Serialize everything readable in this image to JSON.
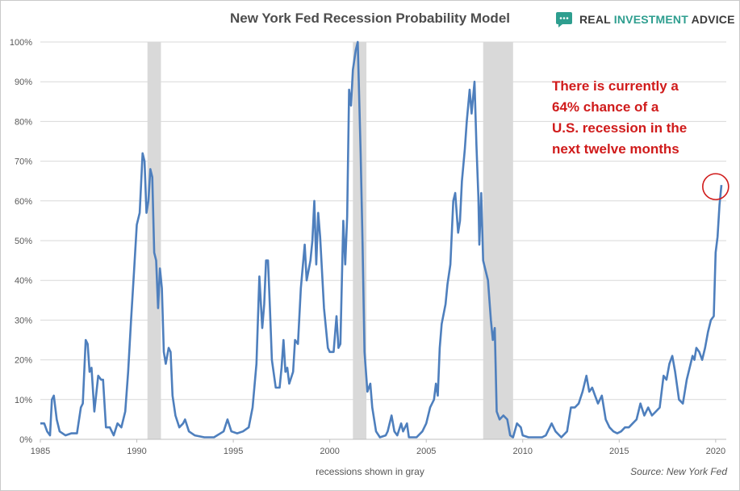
{
  "header": {
    "title": "New York Fed Recession Probability Model",
    "logo_text_a": "REAL ",
    "logo_text_b": "INVESTMENT ",
    "logo_text_c": "ADVICE",
    "logo_icon": "speech-bubble-icon",
    "logo_color": "#2e9e8f"
  },
  "annotation": [
    "There is currently a",
    "64% chance of a",
    "U.S. recession in the",
    "next twelve months"
  ],
  "caption": "recessions shown in gray",
  "source": "Source: New York Fed",
  "colors": {
    "line": "#4e7fbd",
    "recession": "#d9d9d9",
    "grid": "#d9d9d9",
    "highlight": "#d01b1b"
  },
  "chart_data": {
    "type": "line",
    "title": "New York Fed Recession Probability Model",
    "xlabel": "recessions shown in gray",
    "ylabel": "",
    "xlim": [
      1985,
      2020.55
    ],
    "ylim": [
      0,
      100
    ],
    "y_ticks": [
      0,
      10,
      20,
      30,
      40,
      50,
      60,
      70,
      80,
      90,
      100
    ],
    "y_tick_labels": [
      "0%",
      "10%",
      "20%",
      "30%",
      "40%",
      "50%",
      "60%",
      "70%",
      "80%",
      "90%",
      "100%"
    ],
    "x_ticks": [
      1985,
      1990,
      1995,
      2000,
      2005,
      2010,
      2015,
      2020
    ],
    "x_tick_labels": [
      "1985",
      "1990",
      "1995",
      "2000",
      "2005",
      "2010",
      "2015",
      "2020"
    ],
    "grid": "horizontal",
    "recessions": [
      [
        1990.55,
        1991.25
      ],
      [
        2001.2,
        2001.9
      ],
      [
        2007.95,
        2009.5
      ]
    ],
    "highlight_point": [
      2020.25,
      64
    ],
    "series": [
      {
        "values": [
          [
            1985.0,
            4
          ],
          [
            1985.2,
            4
          ],
          [
            1985.35,
            2
          ],
          [
            1985.5,
            1
          ],
          [
            1985.6,
            10
          ],
          [
            1985.7,
            11
          ],
          [
            1985.85,
            5
          ],
          [
            1986.0,
            2
          ],
          [
            1986.3,
            1
          ],
          [
            1986.6,
            1.5
          ],
          [
            1986.9,
            1.5
          ],
          [
            1987.1,
            8
          ],
          [
            1987.2,
            9
          ],
          [
            1987.35,
            25
          ],
          [
            1987.45,
            24
          ],
          [
            1987.55,
            17
          ],
          [
            1987.65,
            18
          ],
          [
            1987.8,
            7
          ],
          [
            1988.0,
            16
          ],
          [
            1988.15,
            15
          ],
          [
            1988.25,
            15
          ],
          [
            1988.4,
            3
          ],
          [
            1988.6,
            3
          ],
          [
            1988.8,
            1
          ],
          [
            1989.0,
            4
          ],
          [
            1989.2,
            3
          ],
          [
            1989.4,
            7
          ],
          [
            1989.55,
            17
          ],
          [
            1989.7,
            30
          ],
          [
            1989.85,
            42
          ],
          [
            1990.0,
            54
          ],
          [
            1990.15,
            57
          ],
          [
            1990.3,
            72
          ],
          [
            1990.4,
            70
          ],
          [
            1990.5,
            57
          ],
          [
            1990.6,
            60
          ],
          [
            1990.7,
            68
          ],
          [
            1990.8,
            66
          ],
          [
            1990.9,
            47
          ],
          [
            1991.0,
            45
          ],
          [
            1991.1,
            33
          ],
          [
            1991.2,
            43
          ],
          [
            1991.3,
            38
          ],
          [
            1991.4,
            22
          ],
          [
            1991.5,
            19
          ],
          [
            1991.65,
            23
          ],
          [
            1991.75,
            22
          ],
          [
            1991.85,
            11
          ],
          [
            1992.0,
            6
          ],
          [
            1992.2,
            3
          ],
          [
            1992.4,
            4
          ],
          [
            1992.5,
            5
          ],
          [
            1992.7,
            2
          ],
          [
            1993.0,
            1
          ],
          [
            1993.5,
            0.5
          ],
          [
            1994.0,
            0.5
          ],
          [
            1994.5,
            2
          ],
          [
            1994.7,
            5
          ],
          [
            1994.9,
            2
          ],
          [
            1995.2,
            1.5
          ],
          [
            1995.5,
            2
          ],
          [
            1995.8,
            3
          ],
          [
            1996.0,
            8
          ],
          [
            1996.2,
            19
          ],
          [
            1996.35,
            41
          ],
          [
            1996.5,
            28
          ],
          [
            1996.6,
            34
          ],
          [
            1996.7,
            45
          ],
          [
            1996.8,
            45
          ],
          [
            1996.9,
            33
          ],
          [
            1997.0,
            20
          ],
          [
            1997.2,
            13
          ],
          [
            1997.4,
            13
          ],
          [
            1997.5,
            18
          ],
          [
            1997.6,
            25
          ],
          [
            1997.7,
            17
          ],
          [
            1997.8,
            18
          ],
          [
            1997.9,
            14
          ],
          [
            1998.1,
            17
          ],
          [
            1998.2,
            25
          ],
          [
            1998.35,
            24
          ],
          [
            1998.5,
            38
          ],
          [
            1998.7,
            49
          ],
          [
            1998.8,
            40
          ],
          [
            1999.0,
            45
          ],
          [
            1999.1,
            50
          ],
          [
            1999.2,
            60
          ],
          [
            1999.3,
            44
          ],
          [
            1999.4,
            57
          ],
          [
            1999.5,
            51
          ],
          [
            1999.7,
            33
          ],
          [
            1999.9,
            23
          ],
          [
            2000.0,
            22
          ],
          [
            2000.2,
            22
          ],
          [
            2000.35,
            31
          ],
          [
            2000.45,
            23
          ],
          [
            2000.55,
            24
          ],
          [
            2000.7,
            55
          ],
          [
            2000.8,
            44
          ],
          [
            2000.9,
            56
          ],
          [
            2001.0,
            88
          ],
          [
            2001.1,
            84
          ],
          [
            2001.2,
            93
          ],
          [
            2001.35,
            98
          ],
          [
            2001.45,
            100
          ],
          [
            2001.6,
            72
          ],
          [
            2001.7,
            49
          ],
          [
            2001.8,
            22
          ],
          [
            2001.95,
            12
          ],
          [
            2002.1,
            14
          ],
          [
            2002.2,
            8
          ],
          [
            2002.4,
            2
          ],
          [
            2002.6,
            0.5
          ],
          [
            2002.9,
            1
          ],
          [
            2003.0,
            2
          ],
          [
            2003.2,
            6
          ],
          [
            2003.35,
            2
          ],
          [
            2003.5,
            1
          ],
          [
            2003.7,
            4
          ],
          [
            2003.8,
            2
          ],
          [
            2004.0,
            4
          ],
          [
            2004.1,
            0.5
          ],
          [
            2004.5,
            0.5
          ],
          [
            2004.8,
            2
          ],
          [
            2005.0,
            4
          ],
          [
            2005.2,
            8
          ],
          [
            2005.4,
            10
          ],
          [
            2005.5,
            14
          ],
          [
            2005.6,
            11
          ],
          [
            2005.7,
            23
          ],
          [
            2005.8,
            29
          ],
          [
            2006.0,
            34
          ],
          [
            2006.1,
            39
          ],
          [
            2006.25,
            44
          ],
          [
            2006.4,
            60
          ],
          [
            2006.5,
            62
          ],
          [
            2006.65,
            52
          ],
          [
            2006.75,
            55
          ],
          [
            2006.85,
            65
          ],
          [
            2007.0,
            73
          ],
          [
            2007.1,
            80
          ],
          [
            2007.25,
            88
          ],
          [
            2007.35,
            82
          ],
          [
            2007.5,
            90
          ],
          [
            2007.6,
            74
          ],
          [
            2007.7,
            61
          ],
          [
            2007.75,
            49
          ],
          [
            2007.85,
            62
          ],
          [
            2007.95,
            45
          ],
          [
            2008.05,
            43
          ],
          [
            2008.2,
            40
          ],
          [
            2008.35,
            30
          ],
          [
            2008.45,
            25
          ],
          [
            2008.55,
            28
          ],
          [
            2008.65,
            7
          ],
          [
            2008.8,
            5
          ],
          [
            2009.0,
            6
          ],
          [
            2009.2,
            5
          ],
          [
            2009.35,
            1
          ],
          [
            2009.5,
            0.5
          ],
          [
            2009.7,
            4
          ],
          [
            2009.9,
            3
          ],
          [
            2010.0,
            1
          ],
          [
            2010.3,
            0.5
          ],
          [
            2010.6,
            0.5
          ],
          [
            2011.0,
            0.5
          ],
          [
            2011.2,
            1
          ],
          [
            2011.5,
            4
          ],
          [
            2011.7,
            2
          ],
          [
            2011.9,
            1
          ],
          [
            2012.0,
            0.5
          ],
          [
            2012.3,
            2
          ],
          [
            2012.5,
            8
          ],
          [
            2012.7,
            8
          ],
          [
            2012.9,
            9
          ],
          [
            2013.1,
            12
          ],
          [
            2013.3,
            16
          ],
          [
            2013.45,
            12
          ],
          [
            2013.6,
            13
          ],
          [
            2013.75,
            11
          ],
          [
            2013.9,
            9
          ],
          [
            2014.1,
            11
          ],
          [
            2014.3,
            5
          ],
          [
            2014.5,
            3
          ],
          [
            2014.7,
            2
          ],
          [
            2014.9,
            1.5
          ],
          [
            2015.1,
            2
          ],
          [
            2015.3,
            3
          ],
          [
            2015.5,
            3
          ],
          [
            2015.7,
            4
          ],
          [
            2015.9,
            5
          ],
          [
            2016.1,
            9
          ],
          [
            2016.3,
            6
          ],
          [
            2016.5,
            8
          ],
          [
            2016.7,
            6
          ],
          [
            2016.9,
            7
          ],
          [
            2017.1,
            8
          ],
          [
            2017.3,
            16
          ],
          [
            2017.45,
            15
          ],
          [
            2017.6,
            19
          ],
          [
            2017.75,
            21
          ],
          [
            2017.9,
            17
          ],
          [
            2018.1,
            10
          ],
          [
            2018.3,
            9
          ],
          [
            2018.5,
            15
          ],
          [
            2018.65,
            18
          ],
          [
            2018.8,
            21
          ],
          [
            2018.9,
            20
          ],
          [
            2019.0,
            23
          ],
          [
            2019.15,
            22
          ],
          [
            2019.3,
            20
          ],
          [
            2019.45,
            23
          ],
          [
            2019.6,
            27
          ],
          [
            2019.75,
            30
          ],
          [
            2019.9,
            31
          ],
          [
            2020.0,
            47
          ],
          [
            2020.1,
            51
          ],
          [
            2020.2,
            59
          ],
          [
            2020.3,
            64
          ]
        ]
      }
    ]
  }
}
